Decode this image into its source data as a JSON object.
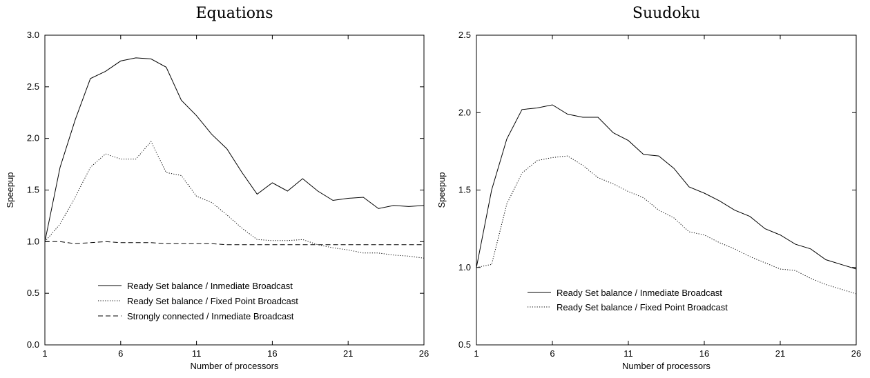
{
  "chart_data": [
    {
      "type": "line",
      "title": "Equations",
      "xlabel": "Number of processors",
      "ylabel": "Speepup",
      "xlim": [
        1,
        26
      ],
      "ylim": [
        0.0,
        3.0
      ],
      "xticks": [
        1,
        6,
        11,
        16,
        21,
        26
      ],
      "yticks": [
        "0.0",
        "0.5",
        "1.0",
        "1.5",
        "2.0",
        "2.5",
        "3.0"
      ],
      "legend_position": "lower-center",
      "x": [
        1,
        2,
        3,
        4,
        5,
        6,
        7,
        8,
        9,
        10,
        11,
        12,
        13,
        14,
        15,
        16,
        17,
        18,
        19,
        20,
        21,
        22,
        23,
        24,
        25,
        26
      ],
      "series": [
        {
          "name": "Ready Set balance / Inmediate Broadcast",
          "style": "solid",
          "values": [
            1.0,
            1.72,
            2.18,
            2.58,
            2.65,
            2.75,
            2.78,
            2.77,
            2.69,
            2.37,
            2.22,
            2.04,
            1.9,
            1.67,
            1.46,
            1.57,
            1.49,
            1.61,
            1.49,
            1.4,
            1.42,
            1.43,
            1.32,
            1.35,
            1.34,
            1.35
          ]
        },
        {
          "name": "Ready Set balance / Fixed Point Broadcast",
          "style": "dotted",
          "values": [
            1.0,
            1.17,
            1.43,
            1.72,
            1.85,
            1.8,
            1.8,
            1.97,
            1.67,
            1.64,
            1.44,
            1.38,
            1.26,
            1.13,
            1.02,
            1.01,
            1.01,
            1.02,
            0.97,
            0.94,
            0.92,
            0.89,
            0.89,
            0.87,
            0.86,
            0.84
          ]
        },
        {
          "name": "Strongly connected / Inmediate Broadcast",
          "style": "dashed",
          "values": [
            1.0,
            1.0,
            0.98,
            0.99,
            1.0,
            0.99,
            0.99,
            0.99,
            0.98,
            0.98,
            0.98,
            0.98,
            0.97,
            0.97,
            0.97,
            0.97,
            0.97,
            0.97,
            0.97,
            0.97,
            0.97,
            0.97,
            0.97,
            0.97,
            0.97,
            0.97
          ]
        }
      ]
    },
    {
      "type": "line",
      "title": "Suudoku",
      "xlabel": "Number of processors",
      "ylabel": "Speepup",
      "xlim": [
        1,
        26
      ],
      "ylim": [
        0.5,
        2.5
      ],
      "xticks": [
        1,
        6,
        11,
        16,
        21,
        26
      ],
      "yticks": [
        "0.5",
        "1.0",
        "1.5",
        "2.0",
        "2.5"
      ],
      "legend_position": "lower-center",
      "x": [
        1,
        2,
        3,
        4,
        5,
        6,
        7,
        8,
        9,
        10,
        11,
        12,
        13,
        14,
        15,
        16,
        17,
        18,
        19,
        20,
        21,
        22,
        23,
        24,
        25,
        26
      ],
      "series": [
        {
          "name": "Ready Set balance / Inmediate Broadcast",
          "style": "solid",
          "values": [
            1.0,
            1.5,
            1.83,
            2.02,
            2.03,
            2.05,
            1.99,
            1.97,
            1.97,
            1.87,
            1.82,
            1.73,
            1.72,
            1.64,
            1.52,
            1.48,
            1.43,
            1.37,
            1.33,
            1.25,
            1.21,
            1.15,
            1.12,
            1.05,
            1.02,
            0.99
          ]
        },
        {
          "name": "Ready Set balance / Fixed Point Broadcast",
          "style": "dotted",
          "values": [
            1.0,
            1.02,
            1.41,
            1.61,
            1.69,
            1.71,
            1.72,
            1.66,
            1.58,
            1.54,
            1.49,
            1.45,
            1.37,
            1.32,
            1.23,
            1.21,
            1.16,
            1.12,
            1.07,
            1.03,
            0.99,
            0.98,
            0.93,
            0.89,
            0.86,
            0.83
          ]
        }
      ]
    }
  ]
}
